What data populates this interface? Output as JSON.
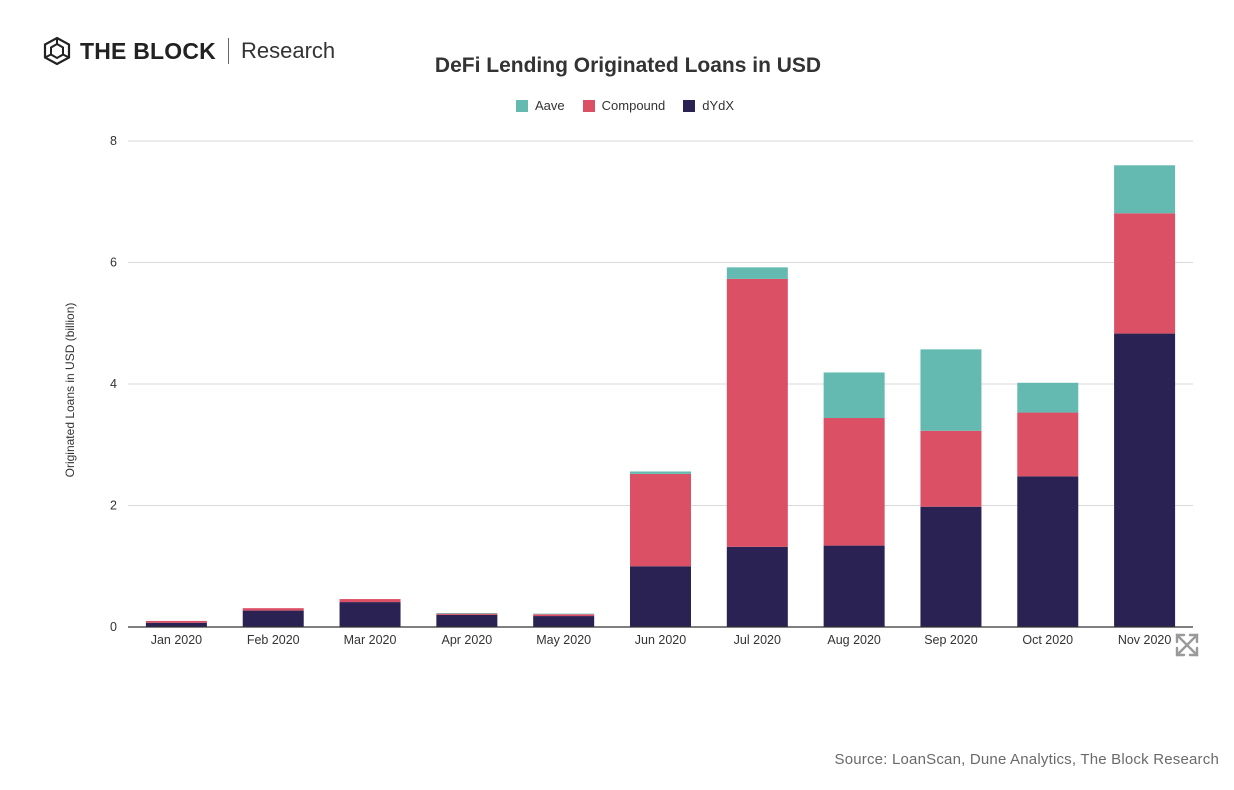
{
  "brand": {
    "name": "THE BLOCK",
    "sub": "Research"
  },
  "source": "Source: LoanScan, Dune Analytics, The Block Research",
  "colors": {
    "Aave": "#64bab1",
    "Compound": "#dc5066",
    "dYdX": "#2a2253",
    "grid": "#d9d9d9"
  },
  "chart_data": {
    "type": "bar",
    "stacked": true,
    "title": "DeFi Lending Originated Loans in USD",
    "xlabel": "",
    "ylabel": "Originated Loans in USD (billion)",
    "ylim": [
      0,
      8
    ],
    "yticks": [
      0,
      2,
      4,
      6,
      8
    ],
    "grid": true,
    "legend_position": "top",
    "categories": [
      "Jan 2020",
      "Feb 2020",
      "Mar 2020",
      "Apr 2020",
      "May 2020",
      "Jun 2020",
      "Jul 2020",
      "Aug 2020",
      "Sep 2020",
      "Oct 2020",
      "Nov 2020"
    ],
    "series": [
      {
        "name": "dYdX",
        "values": [
          0.07,
          0.27,
          0.41,
          0.2,
          0.18,
          1.0,
          1.32,
          1.34,
          1.98,
          2.48,
          4.83
        ]
      },
      {
        "name": "Compound",
        "values": [
          0.03,
          0.04,
          0.05,
          0.02,
          0.03,
          1.52,
          4.41,
          2.1,
          1.25,
          1.05,
          1.98
        ]
      },
      {
        "name": "Aave",
        "values": [
          0.0,
          0.0,
          0.0,
          0.01,
          0.01,
          0.04,
          0.19,
          0.75,
          1.34,
          0.49,
          0.79
        ]
      }
    ]
  }
}
